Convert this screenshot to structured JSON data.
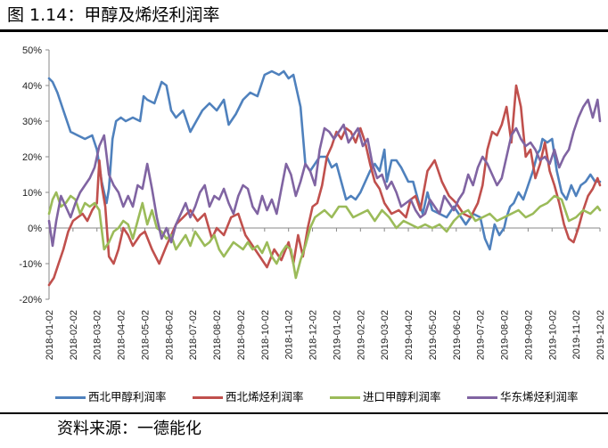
{
  "figure": {
    "title": "图 1.14：甲醇及烯烃利润率",
    "source": "资料来源：一德能化"
  },
  "chart_data": {
    "type": "line",
    "title": "",
    "xlabel": "",
    "ylabel": "",
    "ylim": [
      -0.2,
      0.5
    ],
    "yticks": [
      "50%",
      "40%",
      "30%",
      "20%",
      "10%",
      "0%",
      "-10%",
      "-20%"
    ],
    "grid": false,
    "legend_position": "bottom",
    "x_tick_labels": [
      "2018-01-02",
      "2018-02-02",
      "2018-03-02",
      "2018-04-02",
      "2018-05-02",
      "2018-06-02",
      "2018-07-02",
      "2018-08-02",
      "2018-09-02",
      "2018-10-02",
      "2018-11-02",
      "2018-12-02",
      "2019-01-02",
      "2019-02-02",
      "2019-03-02",
      "2019-04-02",
      "2019-05-02",
      "2019-06-02",
      "2019-07-02",
      "2019-08-02",
      "2019-09-02",
      "2019-10-02",
      "2019-11-02",
      "2019-12-02"
    ],
    "x_domain": [
      0,
      23
    ],
    "series": [
      {
        "name": "西北甲醇利润率",
        "color": "#4f81bd",
        "x": [
          0,
          0.15,
          0.35,
          0.6,
          0.9,
          1.2,
          1.5,
          1.8,
          2.0,
          2.2,
          2.4,
          2.5,
          2.65,
          2.8,
          3.0,
          3.2,
          3.5,
          3.8,
          3.95,
          4.1,
          4.4,
          4.7,
          4.9,
          5.1,
          5.3,
          5.6,
          5.9,
          6.15,
          6.4,
          6.7,
          7.0,
          7.3,
          7.5,
          7.8,
          8.1,
          8.4,
          8.7,
          9.0,
          9.3,
          9.6,
          9.8,
          10.0,
          10.2,
          10.5,
          10.7,
          10.9,
          11.1,
          11.3,
          11.6,
          11.8,
          12.0,
          12.2,
          12.4,
          12.6,
          12.8,
          13.0,
          13.2,
          13.4,
          13.6,
          13.8,
          14.0,
          14.1,
          14.3,
          14.5,
          14.7,
          15.0,
          15.2,
          15.4,
          15.6,
          15.8,
          16.0,
          16.3,
          16.6,
          16.9,
          17.1,
          17.4,
          17.7,
          18.0,
          18.2,
          18.4,
          18.6,
          18.8,
          19.0,
          19.1,
          19.25,
          19.4,
          19.6,
          19.8,
          20.0,
          20.2,
          20.4,
          20.5,
          20.6,
          20.8,
          21.0,
          21.2,
          21.4,
          21.6,
          21.8,
          22.0,
          22.2,
          22.4,
          22.6,
          22.8,
          23.0
        ],
        "values": [
          0.42,
          0.41,
          0.38,
          0.33,
          0.27,
          0.26,
          0.25,
          0.26,
          0.22,
          0.13,
          0.07,
          0.11,
          0.25,
          0.3,
          0.31,
          0.3,
          0.31,
          0.3,
          0.37,
          0.36,
          0.35,
          0.41,
          0.4,
          0.33,
          0.31,
          0.33,
          0.27,
          0.3,
          0.33,
          0.35,
          0.33,
          0.36,
          0.29,
          0.32,
          0.36,
          0.38,
          0.37,
          0.43,
          0.44,
          0.43,
          0.44,
          0.42,
          0.43,
          0.34,
          0.18,
          0.16,
          0.18,
          0.2,
          0.2,
          0.17,
          0.18,
          0.13,
          0.08,
          0.09,
          0.08,
          0.1,
          0.13,
          0.16,
          0.18,
          0.16,
          0.22,
          0.13,
          0.19,
          0.19,
          0.17,
          0.13,
          0.13,
          0.08,
          0.04,
          0.1,
          0.05,
          0.04,
          0.03,
          0.06,
          0.04,
          0.01,
          0.04,
          0.03,
          -0.03,
          -0.06,
          0.01,
          -0.02,
          0.0,
          0.03,
          0.06,
          0.07,
          0.1,
          0.08,
          0.12,
          0.16,
          0.21,
          0.22,
          0.25,
          0.24,
          0.25,
          0.16,
          0.1,
          0.08,
          0.12,
          0.09,
          0.12,
          0.13,
          0.15,
          0.13,
          0.13
        ]
      },
      {
        "name": "西北烯烃利润率",
        "color": "#c0504d",
        "x": [
          0,
          0.2,
          0.4,
          0.6,
          0.8,
          1.0,
          1.2,
          1.4,
          1.6,
          1.8,
          2.0,
          2.1,
          2.2,
          2.35,
          2.5,
          2.7,
          2.9,
          3.1,
          3.3,
          3.5,
          3.8,
          4.0,
          4.3,
          4.6,
          4.9,
          5.1,
          5.3,
          5.6,
          5.9,
          6.2,
          6.5,
          6.8,
          7.0,
          7.3,
          7.6,
          7.9,
          8.2,
          8.5,
          8.8,
          9.1,
          9.4,
          9.7,
          10.0,
          10.2,
          10.4,
          10.6,
          10.8,
          11.0,
          11.2,
          11.4,
          11.6,
          11.8,
          12.0,
          12.2,
          12.4,
          12.6,
          12.8,
          13.0,
          13.2,
          13.4,
          13.6,
          13.8,
          14.0,
          14.3,
          14.6,
          14.9,
          15.1,
          15.3,
          15.5,
          15.8,
          16.1,
          16.4,
          16.7,
          17.0,
          17.3,
          17.6,
          17.9,
          18.1,
          18.3,
          18.5,
          18.7,
          18.9,
          19.1,
          19.3,
          19.5,
          19.7,
          19.9,
          20.1,
          20.3,
          20.5,
          20.7,
          20.9,
          21.1,
          21.3,
          21.5,
          21.7,
          21.9,
          22.1,
          22.3,
          22.5,
          22.7,
          22.9,
          23.0
        ],
        "values": [
          -0.16,
          -0.14,
          -0.1,
          -0.06,
          -0.01,
          0.02,
          0.03,
          0.04,
          0.02,
          0.05,
          0.07,
          0.19,
          0.12,
          0.06,
          -0.08,
          -0.1,
          -0.06,
          0.0,
          -0.02,
          -0.05,
          -0.02,
          -0.01,
          -0.06,
          -0.1,
          -0.05,
          -0.02,
          0.01,
          0.03,
          0.05,
          0.02,
          0.04,
          -0.03,
          0.0,
          -0.02,
          0.03,
          0.04,
          -0.02,
          -0.05,
          -0.08,
          -0.11,
          -0.06,
          -0.09,
          -0.04,
          -0.1,
          -0.02,
          -0.08,
          0.0,
          0.06,
          0.07,
          0.12,
          0.2,
          0.23,
          0.27,
          0.25,
          0.28,
          0.27,
          0.24,
          0.28,
          0.24,
          0.18,
          0.13,
          0.11,
          0.07,
          0.04,
          0.05,
          0.03,
          0.08,
          0.09,
          0.05,
          0.16,
          0.19,
          0.13,
          0.09,
          0.07,
          0.04,
          0.03,
          0.07,
          0.12,
          0.22,
          0.27,
          0.26,
          0.29,
          0.34,
          0.24,
          0.4,
          0.34,
          0.2,
          0.22,
          0.14,
          0.18,
          0.24,
          0.16,
          0.12,
          0.07,
          0.01,
          -0.03,
          -0.04,
          0.0,
          0.05,
          0.09,
          0.11,
          0.14,
          0.12
        ]
      },
      {
        "name": "进口甲醇利润率",
        "color": "#9bbb59",
        "x": [
          0,
          0.15,
          0.3,
          0.5,
          0.7,
          0.9,
          1.1,
          1.3,
          1.5,
          1.7,
          1.9,
          2.1,
          2.3,
          2.5,
          2.7,
          2.9,
          3.1,
          3.3,
          3.5,
          3.7,
          3.9,
          4.1,
          4.3,
          4.5,
          4.7,
          4.9,
          5.1,
          5.3,
          5.5,
          5.7,
          5.9,
          6.1,
          6.3,
          6.5,
          6.7,
          6.9,
          7.1,
          7.3,
          7.5,
          7.7,
          7.9,
          8.1,
          8.3,
          8.5,
          8.7,
          8.9,
          9.1,
          9.3,
          9.5,
          9.7,
          9.9,
          10.1,
          10.3,
          10.5,
          10.7,
          10.9,
          11.1,
          11.3,
          11.5,
          11.8,
          12.1,
          12.4,
          12.7,
          13.0,
          13.3,
          13.6,
          13.9,
          14.2,
          14.5,
          14.8,
          15.1,
          15.4,
          15.7,
          16.0,
          16.3,
          16.6,
          16.9,
          17.2,
          17.5,
          17.8,
          18.1,
          18.4,
          18.7,
          19.0,
          19.3,
          19.6,
          19.9,
          20.2,
          20.5,
          20.8,
          21.1,
          21.4,
          21.7,
          22.0,
          22.3,
          22.6,
          22.9,
          23.0
        ],
        "values": [
          0.04,
          0.08,
          0.1,
          0.06,
          0.07,
          0.09,
          0.08,
          0.04,
          0.07,
          0.06,
          0.07,
          0.05,
          -0.06,
          -0.04,
          -0.01,
          0.0,
          0.02,
          0.01,
          -0.03,
          0.02,
          0.07,
          0.01,
          0.05,
          0.0,
          -0.01,
          -0.03,
          -0.02,
          -0.06,
          -0.04,
          -0.02,
          -0.05,
          -0.01,
          -0.03,
          -0.05,
          -0.04,
          -0.02,
          -0.06,
          -0.08,
          -0.06,
          -0.04,
          -0.05,
          -0.06,
          -0.04,
          -0.06,
          -0.05,
          -0.07,
          -0.04,
          -0.08,
          -0.1,
          -0.07,
          -0.05,
          -0.06,
          -0.14,
          -0.09,
          -0.05,
          0.0,
          0.03,
          0.04,
          0.05,
          0.03,
          0.06,
          0.06,
          0.03,
          0.04,
          0.05,
          0.02,
          0.05,
          0.03,
          0.0,
          0.02,
          0.01,
          0.0,
          0.01,
          0.0,
          0.01,
          -0.01,
          0.02,
          0.04,
          0.05,
          0.02,
          0.03,
          0.04,
          0.02,
          0.03,
          0.04,
          0.05,
          0.03,
          0.04,
          0.06,
          0.07,
          0.09,
          0.08,
          0.02,
          0.03,
          0.05,
          0.04,
          0.06,
          0.05
        ]
      },
      {
        "name": "华东烯烃利润率",
        "color": "#8064a2",
        "x": [
          0,
          0.15,
          0.3,
          0.5,
          0.7,
          0.9,
          1.1,
          1.3,
          1.5,
          1.7,
          1.9,
          2.1,
          2.3,
          2.5,
          2.7,
          2.9,
          3.1,
          3.3,
          3.5,
          3.7,
          3.9,
          4.1,
          4.3,
          4.5,
          4.7,
          4.9,
          5.1,
          5.3,
          5.5,
          5.7,
          5.9,
          6.1,
          6.3,
          6.5,
          6.7,
          6.9,
          7.1,
          7.3,
          7.5,
          7.7,
          7.9,
          8.1,
          8.3,
          8.5,
          8.7,
          8.9,
          9.1,
          9.3,
          9.5,
          9.7,
          9.9,
          10.1,
          10.3,
          10.5,
          10.7,
          10.9,
          11.1,
          11.3,
          11.5,
          11.7,
          11.9,
          12.1,
          12.3,
          12.5,
          12.7,
          12.9,
          13.1,
          13.3,
          13.5,
          13.7,
          13.9,
          14.1,
          14.3,
          14.5,
          14.7,
          14.9,
          15.1,
          15.3,
          15.5,
          15.7,
          15.9,
          16.1,
          16.3,
          16.5,
          16.7,
          16.9,
          17.1,
          17.3,
          17.5,
          17.7,
          17.9,
          18.1,
          18.3,
          18.5,
          18.7,
          18.9,
          19.1,
          19.3,
          19.5,
          19.7,
          19.9,
          20.1,
          20.3,
          20.5,
          20.7,
          20.9,
          21.1,
          21.3,
          21.5,
          21.7,
          21.9,
          22.1,
          22.3,
          22.5,
          22.7,
          22.9,
          23.0
        ],
        "values": [
          0.02,
          -0.05,
          0.02,
          0.09,
          0.06,
          0.03,
          0.07,
          0.1,
          0.12,
          0.14,
          0.17,
          0.23,
          0.26,
          0.15,
          0.12,
          0.1,
          0.06,
          0.09,
          0.06,
          0.12,
          0.11,
          0.18,
          0.11,
          0.03,
          -0.03,
          0.0,
          -0.04,
          0.01,
          0.04,
          0.07,
          0.03,
          0.06,
          0.1,
          0.12,
          0.06,
          0.09,
          0.08,
          0.11,
          0.07,
          0.04,
          0.09,
          0.12,
          0.11,
          0.06,
          0.04,
          0.09,
          0.05,
          0.08,
          0.04,
          0.11,
          0.18,
          0.15,
          0.09,
          0.13,
          0.18,
          0.16,
          0.12,
          0.22,
          0.28,
          0.27,
          0.25,
          0.27,
          0.29,
          0.24,
          0.26,
          0.28,
          0.23,
          0.25,
          0.18,
          0.14,
          0.15,
          0.11,
          0.13,
          0.1,
          0.06,
          0.07,
          0.08,
          0.05,
          0.03,
          0.04,
          0.08,
          0.06,
          0.04,
          0.09,
          0.07,
          0.05,
          0.08,
          0.1,
          0.15,
          0.12,
          0.17,
          0.2,
          0.18,
          0.15,
          0.12,
          0.14,
          0.2,
          0.26,
          0.28,
          0.25,
          0.23,
          0.24,
          0.22,
          0.19,
          0.2,
          0.18,
          0.22,
          0.17,
          0.2,
          0.22,
          0.27,
          0.31,
          0.34,
          0.36,
          0.31,
          0.36,
          0.3
        ]
      }
    ]
  }
}
